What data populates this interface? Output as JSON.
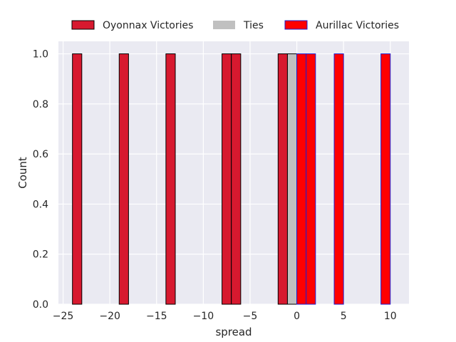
{
  "chart_data": {
    "type": "bar",
    "xlabel": "spread",
    "ylabel": "Count",
    "xlim": [
      -25.5,
      12.0
    ],
    "ylim": [
      0,
      1.05
    ],
    "xticks": [
      -25,
      -20,
      -15,
      -10,
      -5,
      0,
      5,
      10
    ],
    "xtick_labels": [
      "−25",
      "−20",
      "−15",
      "−10",
      "−5",
      "0",
      "5",
      "10"
    ],
    "yticks": [
      0.0,
      0.2,
      0.4,
      0.6,
      0.8,
      1.0
    ],
    "ytick_labels": [
      "0.0",
      "0.2",
      "0.4",
      "0.6",
      "0.8",
      "1.0"
    ],
    "grid": true,
    "legend_position": "top",
    "bin_width": 1.0,
    "series": [
      {
        "name": "Oyonnax Victories",
        "color": "#d7192f",
        "edge_color": "#000000",
        "bins": [
          {
            "x": -24,
            "count": 1
          },
          {
            "x": -19,
            "count": 1
          },
          {
            "x": -14,
            "count": 1
          },
          {
            "x": -8,
            "count": 1
          },
          {
            "x": -7,
            "count": 1
          },
          {
            "x": -2,
            "count": 1
          }
        ]
      },
      {
        "name": "Ties",
        "color": "#c0c0c0",
        "edge_color": "#000000",
        "bins": [
          {
            "x": -1,
            "count": 1
          }
        ]
      },
      {
        "name": "Aurillac Victories",
        "color": "#ff0000",
        "edge_color": "#1f1fd0",
        "bins": [
          {
            "x": 0,
            "count": 1
          },
          {
            "x": 1,
            "count": 1
          },
          {
            "x": 4,
            "count": 1
          },
          {
            "x": 9,
            "count": 1
          }
        ]
      }
    ]
  }
}
